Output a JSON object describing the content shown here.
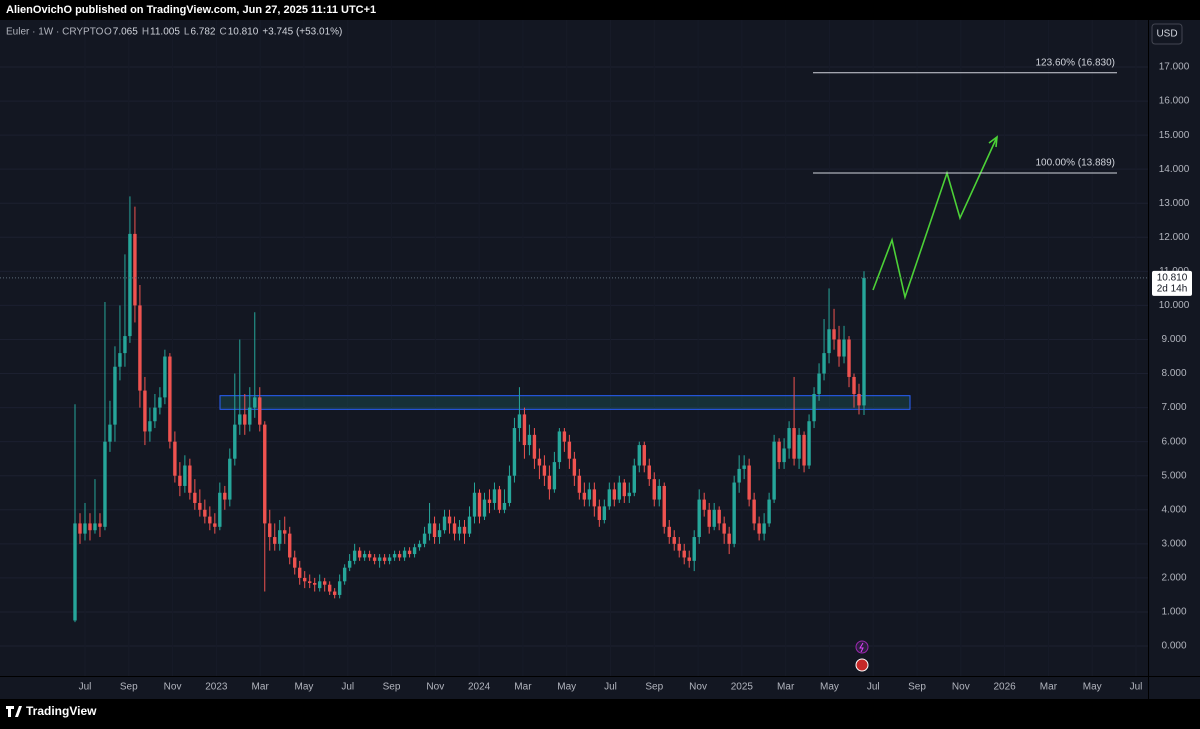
{
  "header": {
    "publisher": "AlienOvichO published on TradingView.com, Jun 27, 2025 11:11 UTC+1",
    "brand": "TradingView"
  },
  "chart_data": {
    "type": "candlestick",
    "symbol": "Euler · 1W · CRYPTO",
    "legend": [
      {
        "label": "O",
        "value": "7.065"
      },
      {
        "label": "H",
        "value": "11.005"
      },
      {
        "label": "L",
        "value": "6.782"
      },
      {
        "label": "C",
        "value": "10.810"
      }
    ],
    "change": "+3.745 (+53.01%)",
    "currency": "USD",
    "last_price_label": "10.810",
    "countdown": "2d 14h",
    "up_color": "#26a69a",
    "down_color": "#ef5350",
    "ylim": [
      -0.88,
      18.38
    ],
    "yticks": [
      {
        "value": 0,
        "label": "0.000"
      },
      {
        "value": 1,
        "label": "1.000"
      },
      {
        "value": 2,
        "label": "2.000"
      },
      {
        "value": 3,
        "label": "3.000"
      },
      {
        "value": 4,
        "label": "4.000"
      },
      {
        "value": 5,
        "label": "5.000"
      },
      {
        "value": 6,
        "label": "6.000"
      },
      {
        "value": 7,
        "label": "7.000"
      },
      {
        "value": 8,
        "label": "8.000"
      },
      {
        "value": 9,
        "label": "9.000"
      },
      {
        "value": 10,
        "label": "10.000"
      },
      {
        "value": 11,
        "label": "11.000"
      },
      {
        "value": 12,
        "label": "12.000"
      },
      {
        "value": 13,
        "label": "13.000"
      },
      {
        "value": 14,
        "label": "14.000"
      },
      {
        "value": 15,
        "label": "15.000"
      },
      {
        "value": 16,
        "label": "16.000"
      },
      {
        "value": 17,
        "label": "17.000"
      }
    ],
    "x_labels": [
      "Jul",
      "Sep",
      "Nov",
      "2023",
      "Mar",
      "May",
      "Jul",
      "Sep",
      "Nov",
      "2024",
      "Mar",
      "May",
      "Jul",
      "Sep",
      "Nov",
      "2025",
      "Mar",
      "May",
      "Jul",
      "Sep",
      "Nov",
      "2026",
      "Mar",
      "May",
      "Jul"
    ],
    "levels": [
      {
        "value": 16.83,
        "label": "123.60% (16.830)"
      },
      {
        "value": 13.889,
        "label": "100.00% (13.889)"
      }
    ],
    "zone": [
      6.95,
      7.35
    ],
    "ohlc": [
      [
        0.75,
        7.1,
        0.7,
        3.6
      ],
      [
        3.6,
        3.9,
        3.0,
        3.3
      ],
      [
        3.3,
        4.2,
        3.1,
        3.6
      ],
      [
        3.6,
        3.9,
        3.1,
        3.4
      ],
      [
        3.4,
        4.9,
        3.3,
        3.6
      ],
      [
        3.6,
        3.9,
        3.2,
        3.5
      ],
      [
        3.5,
        10.1,
        3.4,
        6.0
      ],
      [
        6.0,
        7.2,
        5.7,
        6.5
      ],
      [
        6.5,
        8.8,
        6.0,
        8.2
      ],
      [
        8.2,
        10.0,
        7.8,
        8.6
      ],
      [
        8.6,
        11.5,
        8.2,
        9.1
      ],
      [
        9.1,
        13.2,
        8.9,
        12.1
      ],
      [
        12.1,
        12.9,
        9.5,
        10.0
      ],
      [
        10.0,
        10.6,
        7.0,
        7.5
      ],
      [
        7.5,
        7.9,
        5.9,
        6.3
      ],
      [
        6.3,
        7.0,
        6.0,
        6.6
      ],
      [
        6.6,
        7.4,
        6.4,
        7.0
      ],
      [
        7.0,
        7.6,
        6.8,
        7.3
      ],
      [
        7.3,
        8.7,
        7.1,
        8.5
      ],
      [
        8.5,
        8.6,
        5.8,
        6.0
      ],
      [
        6.0,
        6.3,
        4.8,
        5.0
      ],
      [
        5.0,
        5.4,
        4.4,
        4.7
      ],
      [
        4.7,
        5.6,
        4.5,
        5.3
      ],
      [
        5.3,
        5.5,
        4.3,
        4.5
      ],
      [
        4.5,
        4.9,
        4.0,
        4.2
      ],
      [
        4.2,
        4.6,
        3.8,
        4.0
      ],
      [
        4.0,
        4.3,
        3.6,
        3.8
      ],
      [
        3.8,
        4.1,
        3.4,
        3.6
      ],
      [
        3.6,
        3.9,
        3.3,
        3.5
      ],
      [
        3.5,
        4.8,
        3.4,
        4.5
      ],
      [
        4.5,
        4.7,
        4.0,
        4.3
      ],
      [
        4.3,
        5.8,
        4.1,
        5.5
      ],
      [
        5.5,
        8.0,
        5.3,
        6.5
      ],
      [
        6.5,
        9.0,
        6.2,
        6.8
      ],
      [
        6.8,
        7.4,
        6.2,
        6.5
      ],
      [
        6.5,
        7.6,
        6.3,
        7.0
      ],
      [
        7.0,
        9.8,
        6.7,
        7.3
      ],
      [
        7.3,
        7.6,
        6.3,
        6.5
      ],
      [
        6.5,
        6.6,
        1.6,
        3.6
      ],
      [
        3.6,
        4.0,
        2.8,
        3.2
      ],
      [
        3.2,
        3.6,
        2.8,
        3.0
      ],
      [
        3.0,
        3.7,
        2.8,
        3.4
      ],
      [
        3.4,
        3.8,
        3.0,
        3.3
      ],
      [
        3.3,
        3.5,
        2.4,
        2.6
      ],
      [
        2.6,
        2.8,
        2.1,
        2.3
      ],
      [
        2.3,
        2.5,
        1.8,
        2.0
      ],
      [
        2.0,
        2.2,
        1.7,
        1.9
      ],
      [
        1.9,
        2.1,
        1.7,
        1.85
      ],
      [
        1.85,
        2.0,
        1.6,
        1.8
      ],
      [
        1.7,
        2.1,
        1.6,
        1.9
      ],
      [
        1.9,
        2.0,
        1.6,
        1.8
      ],
      [
        1.8,
        1.9,
        1.5,
        1.6
      ],
      [
        1.6,
        1.7,
        1.4,
        1.5
      ],
      [
        1.5,
        2.1,
        1.4,
        1.9
      ],
      [
        1.9,
        2.4,
        1.8,
        2.3
      ],
      [
        2.3,
        2.7,
        2.2,
        2.5
      ],
      [
        2.5,
        3.0,
        2.4,
        2.8
      ],
      [
        2.8,
        2.9,
        2.5,
        2.6
      ],
      [
        2.6,
        2.8,
        2.5,
        2.7
      ],
      [
        2.7,
        2.8,
        2.5,
        2.6
      ],
      [
        2.6,
        2.7,
        2.4,
        2.5
      ],
      [
        2.5,
        2.7,
        2.3,
        2.6
      ],
      [
        2.6,
        2.7,
        2.4,
        2.5
      ],
      [
        2.5,
        2.7,
        2.4,
        2.6
      ],
      [
        2.6,
        2.8,
        2.5,
        2.7
      ],
      [
        2.7,
        2.8,
        2.5,
        2.6
      ],
      [
        2.6,
        2.9,
        2.5,
        2.8
      ],
      [
        2.8,
        2.9,
        2.6,
        2.7
      ],
      [
        2.7,
        3.0,
        2.6,
        2.9
      ],
      [
        2.9,
        3.1,
        2.8,
        3.0
      ],
      [
        3.0,
        3.5,
        2.9,
        3.3
      ],
      [
        3.3,
        4.2,
        3.1,
        3.6
      ],
      [
        3.6,
        3.8,
        3.0,
        3.2
      ],
      [
        3.2,
        3.6,
        3.0,
        3.4
      ],
      [
        3.4,
        4.0,
        3.3,
        3.8
      ],
      [
        3.8,
        4.0,
        3.3,
        3.6
      ],
      [
        3.6,
        3.8,
        3.1,
        3.3
      ],
      [
        3.3,
        3.7,
        3.1,
        3.5
      ],
      [
        3.5,
        3.7,
        3.0,
        3.3
      ],
      [
        3.3,
        4.1,
        3.2,
        3.8
      ],
      [
        3.8,
        4.8,
        3.6,
        4.5
      ],
      [
        4.5,
        4.6,
        3.6,
        3.8
      ],
      [
        3.8,
        4.5,
        3.7,
        4.3
      ],
      [
        4.3,
        4.6,
        3.9,
        4.2
      ],
      [
        4.2,
        4.8,
        4.0,
        4.6
      ],
      [
        4.6,
        4.7,
        3.9,
        4.0
      ],
      [
        4.0,
        4.6,
        3.9,
        4.2
      ],
      [
        4.2,
        5.3,
        4.1,
        5.0
      ],
      [
        5.0,
        6.7,
        4.8,
        6.4
      ],
      [
        6.4,
        7.6,
        6.0,
        6.8
      ],
      [
        6.8,
        7.0,
        5.5,
        5.9
      ],
      [
        5.9,
        6.5,
        5.6,
        6.2
      ],
      [
        6.2,
        6.4,
        5.2,
        5.5
      ],
      [
        5.5,
        5.8,
        4.9,
        5.3
      ],
      [
        5.3,
        5.6,
        4.7,
        5.0
      ],
      [
        5.0,
        5.3,
        4.3,
        4.6
      ],
      [
        4.6,
        5.7,
        4.5,
        5.4
      ],
      [
        5.4,
        6.4,
        5.2,
        6.3
      ],
      [
        6.3,
        6.4,
        5.7,
        6.0
      ],
      [
        6.0,
        6.2,
        5.2,
        5.5
      ],
      [
        5.5,
        5.7,
        4.7,
        5.0
      ],
      [
        5.0,
        5.2,
        4.3,
        4.5
      ],
      [
        4.5,
        4.8,
        4.1,
        4.3
      ],
      [
        4.3,
        4.8,
        4.1,
        4.6
      ],
      [
        4.6,
        4.8,
        3.8,
        4.1
      ],
      [
        4.1,
        4.3,
        3.5,
        3.7
      ],
      [
        3.7,
        4.3,
        3.6,
        4.1
      ],
      [
        4.1,
        4.8,
        4.0,
        4.6
      ],
      [
        4.6,
        4.8,
        4.1,
        4.3
      ],
      [
        4.3,
        5.0,
        4.2,
        4.8
      ],
      [
        4.8,
        4.9,
        4.2,
        4.4
      ],
      [
        4.4,
        4.8,
        4.2,
        4.5
      ],
      [
        4.5,
        5.5,
        4.4,
        5.3
      ],
      [
        5.3,
        6.0,
        5.1,
        5.9
      ],
      [
        5.9,
        6.0,
        5.1,
        5.3
      ],
      [
        5.3,
        5.5,
        4.7,
        4.9
      ],
      [
        4.9,
        5.1,
        4.1,
        4.3
      ],
      [
        4.3,
        4.9,
        4.1,
        4.7
      ],
      [
        4.7,
        4.8,
        3.3,
        3.5
      ],
      [
        3.5,
        3.7,
        3.0,
        3.2
      ],
      [
        3.2,
        3.4,
        2.8,
        3.0
      ],
      [
        3.0,
        3.2,
        2.6,
        2.8
      ],
      [
        2.8,
        3.0,
        2.4,
        2.6
      ],
      [
        2.6,
        2.8,
        2.3,
        2.5
      ],
      [
        2.5,
        3.4,
        2.2,
        3.2
      ],
      [
        3.2,
        4.6,
        3.0,
        4.3
      ],
      [
        4.3,
        4.5,
        3.8,
        4.0
      ],
      [
        4.0,
        4.2,
        3.3,
        3.5
      ],
      [
        3.5,
        4.2,
        3.4,
        4.0
      ],
      [
        4.0,
        4.1,
        3.4,
        3.6
      ],
      [
        3.6,
        3.8,
        3.0,
        3.3
      ],
      [
        3.3,
        3.5,
        2.7,
        3.0
      ],
      [
        3.0,
        5.0,
        2.9,
        4.8
      ],
      [
        4.8,
        5.6,
        4.5,
        5.2
      ],
      [
        5.2,
        5.6,
        4.9,
        5.3
      ],
      [
        5.3,
        5.5,
        4.1,
        4.3
      ],
      [
        4.3,
        4.5,
        3.4,
        3.6
      ],
      [
        3.6,
        3.8,
        3.1,
        3.3
      ],
      [
        3.3,
        3.9,
        3.1,
        3.6
      ],
      [
        3.6,
        4.5,
        3.5,
        4.3
      ],
      [
        4.3,
        6.2,
        4.2,
        6.0
      ],
      [
        6.0,
        6.1,
        5.2,
        5.4
      ],
      [
        5.4,
        6.1,
        5.2,
        5.8
      ],
      [
        5.8,
        6.6,
        5.5,
        6.4
      ],
      [
        6.4,
        7.9,
        5.3,
        5.5
      ],
      [
        5.5,
        6.4,
        5.2,
        6.2
      ],
      [
        6.2,
        6.3,
        5.1,
        5.3
      ],
      [
        5.3,
        6.8,
        5.2,
        6.6
      ],
      [
        6.6,
        7.6,
        6.4,
        7.4
      ],
      [
        7.4,
        8.3,
        7.2,
        8.0
      ],
      [
        8.0,
        9.6,
        7.8,
        8.6
      ],
      [
        8.6,
        10.5,
        8.3,
        9.3
      ],
      [
        9.3,
        9.9,
        8.7,
        9.0
      ],
      [
        9.0,
        9.4,
        8.2,
        8.5
      ],
      [
        8.5,
        9.4,
        8.3,
        9.0
      ],
      [
        9.0,
        9.1,
        7.6,
        7.9
      ],
      [
        7.9,
        8.0,
        7.0,
        7.4
      ],
      [
        7.4,
        7.7,
        6.8,
        7.065
      ],
      [
        7.065,
        11.005,
        6.782,
        10.81
      ]
    ]
  }
}
